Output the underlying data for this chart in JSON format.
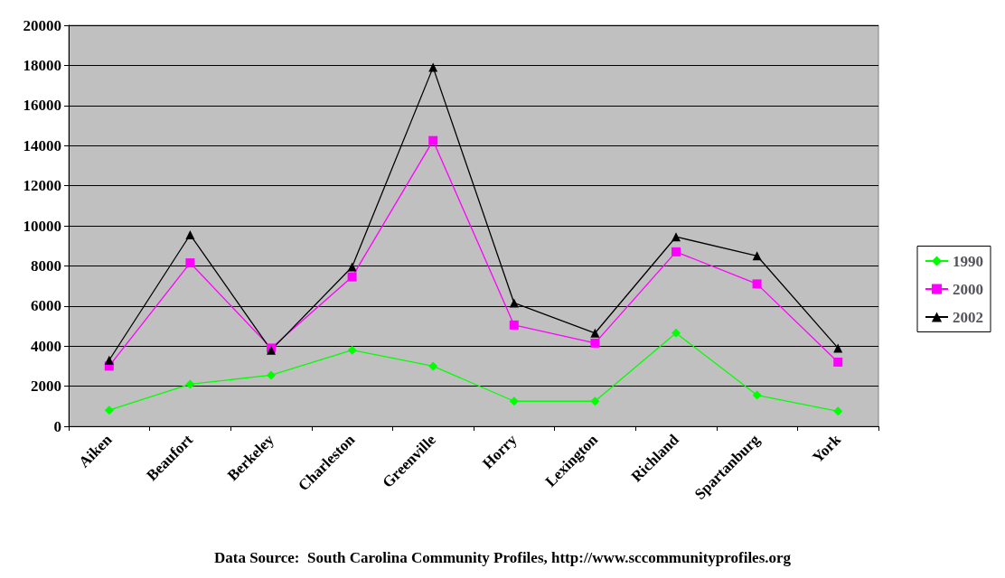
{
  "chart_data": {
    "type": "line",
    "categories": [
      "Aiken",
      "Beaufort",
      "Berkeley",
      "Charleston",
      "Greenville",
      "Horry",
      "Lexington",
      "Richland",
      "Spartanburg",
      "York"
    ],
    "series": [
      {
        "name": "1990",
        "color": "#00ff00",
        "marker": "diamond",
        "values": [
          800,
          2100,
          2550,
          3800,
          3000,
          1250,
          1250,
          4650,
          1550,
          750
        ]
      },
      {
        "name": "2000",
        "color": "#ff00ff",
        "marker": "square",
        "values": [
          3000,
          8150,
          3900,
          7450,
          14250,
          5050,
          4150,
          8700,
          7100,
          3200
        ]
      },
      {
        "name": "2002",
        "color": "#000000",
        "marker": "triangle",
        "values": [
          3300,
          9550,
          3800,
          7950,
          17900,
          6150,
          4650,
          9450,
          8500,
          3900
        ]
      }
    ],
    "ylim": [
      0,
      20000
    ],
    "yticks": [
      0,
      2000,
      4000,
      6000,
      8000,
      10000,
      12000,
      14000,
      16000,
      18000,
      20000
    ],
    "grid": "y",
    "legend": "right",
    "annotations": [
      "Data Source:  South Carolina Community Profiles, http://www.sccommunityprofiles.org"
    ]
  }
}
